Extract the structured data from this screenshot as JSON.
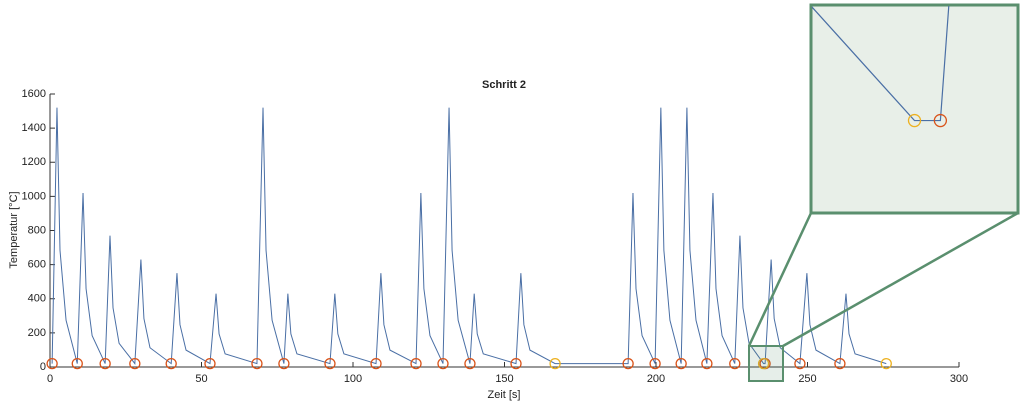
{
  "chart_data": {
    "type": "line",
    "title": "Schritt 2",
    "x_label": "Zeit [s]",
    "y_label": "Temperatur [°C]",
    "xlim": [
      0,
      300
    ],
    "xticks": [
      0,
      50,
      100,
      150,
      200,
      250,
      300
    ],
    "ylim": [
      0,
      1600
    ],
    "yticks": [
      0,
      200,
      400,
      600,
      800,
      1000,
      1200,
      1400,
      1600
    ],
    "line_color": "#4a6fa5",
    "x": [
      0.7,
      2.3,
      3.3,
      5.3,
      9,
      10.9,
      11.9,
      13.9,
      18.2,
      19.8,
      20.8,
      22.8,
      28,
      30,
      31,
      33,
      40,
      41.9,
      42.9,
      44.9,
      52.8,
      54.8,
      55.8,
      57.8,
      68.3,
      70.3,
      71.3,
      73.3,
      77.2,
      78.5,
      79.5,
      81.5,
      92.4,
      94,
      95,
      97,
      107.6,
      109.2,
      110.2,
      112.2,
      120.8,
      122.4,
      123.4,
      125.4,
      129.7,
      131.7,
      132.7,
      134.7,
      138.6,
      140,
      141,
      143,
      153.8,
      155.4,
      156.4,
      158.4,
      166.7,
      190.8,
      192.4,
      193.4,
      195.4,
      199.7,
      201.6,
      202.6,
      204.6,
      208.3,
      210.2,
      211.2,
      213.2,
      216.8,
      218.8,
      219.8,
      221.8,
      226,
      227.7,
      228.7,
      230.7,
      235.5,
      236,
      238,
      239,
      241,
      247.5,
      249.8,
      250.8,
      252.8,
      260.7,
      262.7,
      263.7,
      265.7,
      276
    ],
    "y": [
      20,
      1520,
      684,
      274,
      20,
      1020,
      459,
      184,
      20,
      770,
      347,
      139,
      20,
      630,
      284,
      113,
      20,
      550,
      248,
      99,
      20,
      430,
      194,
      77,
      20,
      1520,
      684,
      274,
      20,
      430,
      194,
      77,
      20,
      430,
      194,
      77,
      20,
      550,
      248,
      99,
      20,
      1020,
      459,
      184,
      20,
      1520,
      684,
      274,
      20,
      430,
      194,
      77,
      20,
      550,
      248,
      99,
      20,
      20,
      1020,
      459,
      184,
      20,
      1520,
      684,
      274,
      20,
      1520,
      684,
      274,
      20,
      1020,
      459,
      184,
      20,
      770,
      347,
      139,
      20,
      20,
      630,
      284,
      113,
      20,
      550,
      248,
      99,
      20,
      430,
      194,
      77,
      20
    ],
    "markers": [
      {
        "color": "#d95319",
        "x": [
          0.7,
          9,
          18.2,
          28,
          40,
          52.8,
          68.3,
          77.2,
          92.4,
          107.6,
          120.8,
          129.7,
          138.6,
          153.8,
          190.8,
          199.7,
          208.3,
          216.8,
          226,
          236,
          247.5,
          260.7
        ],
        "y": [
          20,
          20,
          20,
          20,
          20,
          20,
          20,
          20,
          20,
          20,
          20,
          20,
          20,
          20,
          20,
          20,
          20,
          20,
          20,
          20,
          20,
          20
        ]
      },
      {
        "color": "#edb120",
        "x": [
          166.7,
          235.5,
          276
        ],
        "y": [
          20,
          20,
          20
        ]
      }
    ],
    "inset": {
      "xlim": [
        233.5,
        237.5
      ],
      "ylim": [
        -20,
        70
      ],
      "background": "#e8efe8",
      "border": "#5a8f6e"
    }
  }
}
